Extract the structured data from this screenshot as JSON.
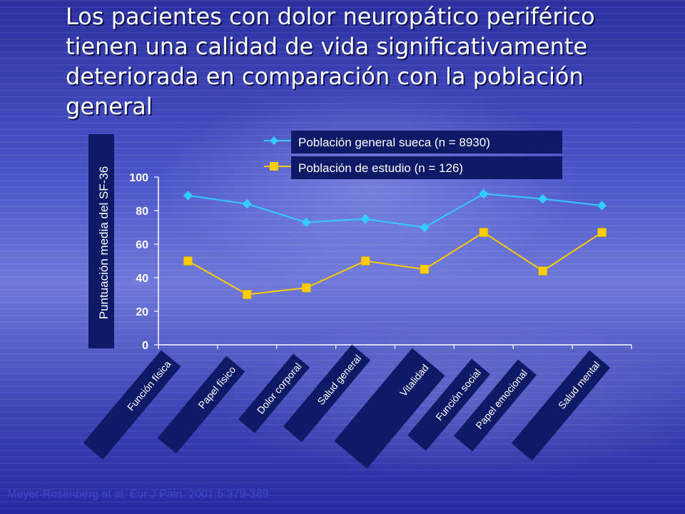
{
  "slide": {
    "title": "Los pacientes con dolor neuropático periférico tienen una calidad de vida significativamente deteriorada en comparación con la población general",
    "citation": "Meyer-Rosenberg et al. Eur J Pain. 2001;5:379-389"
  },
  "colors": {
    "series_general": "#33ccff",
    "series_study": "#ffcc00",
    "label_box": "#0f1a66",
    "axis": "#ffffff"
  },
  "chart_data": {
    "type": "line",
    "title": "",
    "xlabel": "",
    "ylabel": "Puntuación media del SF-36",
    "ylim": [
      0,
      100
    ],
    "yticks": [
      0,
      20,
      40,
      60,
      80,
      100
    ],
    "grid": false,
    "legend_position": "top",
    "categories": [
      "Función física",
      "Papel físico",
      "Dolor corporal",
      "Salud general",
      "Vitalidad",
      "Función social",
      "Papel emocional",
      "Salud mental"
    ],
    "series": [
      {
        "name": "Población general sueca (n = 8930)",
        "marker": "diamond",
        "values": [
          89,
          84,
          73,
          75,
          70,
          90,
          87,
          83
        ]
      },
      {
        "name": "Población de estudio (n = 126)",
        "marker": "square",
        "values": [
          50,
          30,
          34,
          50,
          45,
          67,
          44,
          67
        ]
      }
    ]
  }
}
